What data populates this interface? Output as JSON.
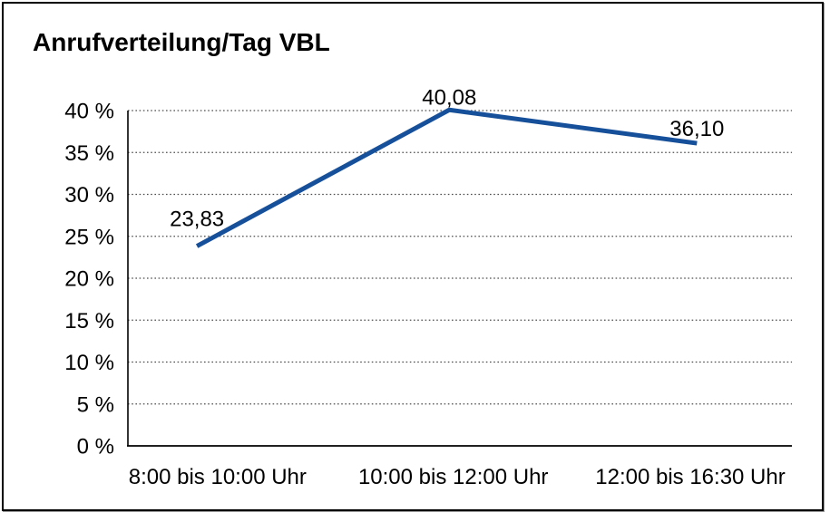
{
  "colors": {
    "background": "#ffffff",
    "frame_border": "#000000",
    "text": "#000000",
    "grid": "#4d4d4d",
    "axis": "#000000",
    "line": "#164f9a"
  },
  "chart_data": {
    "type": "line",
    "title": "Anrufverteilung/Tag VBL",
    "categories": [
      "8:00 bis 10:00 Uhr",
      "10:00 bis 12:00 Uhr",
      "12:00 bis 16:30 Uhr"
    ],
    "values": [
      23.83,
      40.08,
      36.1
    ],
    "point_labels": [
      "23,83",
      "40,08",
      "36,10"
    ],
    "series_name": "Anrufverteilung",
    "xlabel": "",
    "ylabel": "",
    "ylim": [
      0,
      40
    ],
    "ytick_step": 5,
    "ytick_labels": [
      "0 %",
      "5 %",
      "10 %",
      "15 %",
      "20 %",
      "25 %",
      "30 %",
      "35 %",
      "40 %"
    ],
    "grid": "horizontal-dotted",
    "legend": "none",
    "line_color": "#164f9a",
    "line_width": 5
  }
}
